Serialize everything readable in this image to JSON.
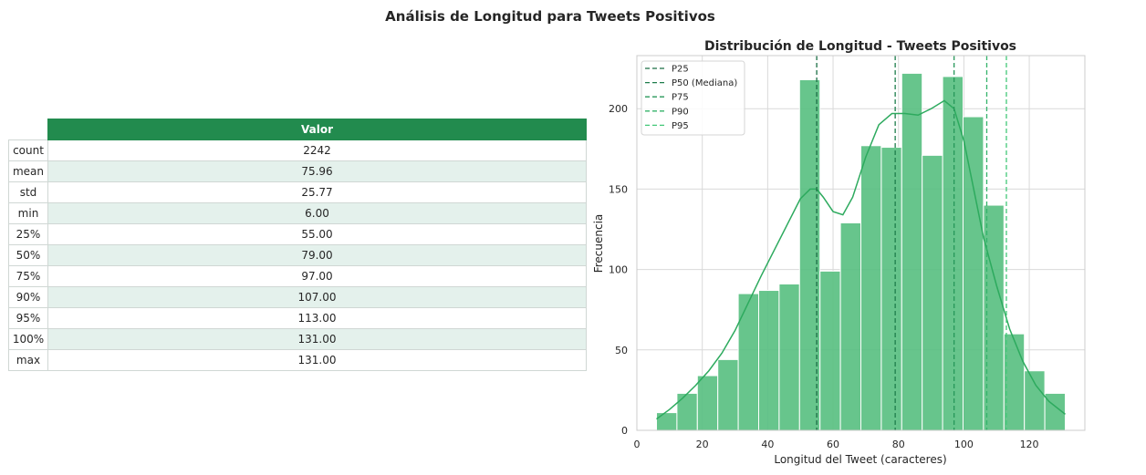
{
  "suptitle": "Análisis de Longitud para Tweets Positivos",
  "table": {
    "header": "Valor",
    "rows": [
      {
        "label": "count",
        "value": "2242"
      },
      {
        "label": "mean",
        "value": "75.96"
      },
      {
        "label": "std",
        "value": "25.77"
      },
      {
        "label": "min",
        "value": "6.00"
      },
      {
        "label": "25%",
        "value": "55.00"
      },
      {
        "label": "50%",
        "value": "79.00"
      },
      {
        "label": "75%",
        "value": "97.00"
      },
      {
        "label": "90%",
        "value": "107.00"
      },
      {
        "label": "95%",
        "value": "113.00"
      },
      {
        "label": "100%",
        "value": "131.00"
      },
      {
        "label": "max",
        "value": "131.00"
      }
    ],
    "colors": {
      "header_bg": "#228b4e",
      "stripe": "#e4f1ec"
    }
  },
  "chart_data": {
    "type": "bar",
    "subtype": "histogram",
    "title": "Distribución de Longitud - Tweets Positivos",
    "xlabel": "Longitud del Tweet (caracteres)",
    "ylabel": "Frecuencia",
    "xlim": [
      0,
      137
    ],
    "ylim": [
      0,
      233
    ],
    "xticks": [
      0,
      20,
      40,
      60,
      80,
      100,
      120
    ],
    "yticks": [
      0,
      50,
      100,
      150,
      200
    ],
    "grid": true,
    "bar_color": "#57bf80",
    "bins": [
      {
        "x0": 6.0,
        "x1": 12.25,
        "count": 11
      },
      {
        "x0": 12.25,
        "x1": 18.5,
        "count": 23
      },
      {
        "x0": 18.5,
        "x1": 24.75,
        "count": 34
      },
      {
        "x0": 24.75,
        "x1": 31.0,
        "count": 44
      },
      {
        "x0": 31.0,
        "x1": 37.25,
        "count": 85
      },
      {
        "x0": 37.25,
        "x1": 43.5,
        "count": 87
      },
      {
        "x0": 43.5,
        "x1": 49.75,
        "count": 91
      },
      {
        "x0": 49.75,
        "x1": 56.0,
        "count": 218
      },
      {
        "x0": 56.0,
        "x1": 62.25,
        "count": 99
      },
      {
        "x0": 62.25,
        "x1": 68.5,
        "count": 129
      },
      {
        "x0": 68.5,
        "x1": 74.75,
        "count": 177
      },
      {
        "x0": 74.75,
        "x1": 81.0,
        "count": 176
      },
      {
        "x0": 81.0,
        "x1": 87.25,
        "count": 222
      },
      {
        "x0": 87.25,
        "x1": 93.5,
        "count": 171
      },
      {
        "x0": 93.5,
        "x1": 99.75,
        "count": 220
      },
      {
        "x0": 99.75,
        "x1": 106.0,
        "count": 195
      },
      {
        "x0": 106.0,
        "x1": 112.25,
        "count": 140
      },
      {
        "x0": 112.25,
        "x1": 118.5,
        "count": 60
      },
      {
        "x0": 118.5,
        "x1": 124.75,
        "count": 37
      },
      {
        "x0": 124.75,
        "x1": 131.0,
        "count": 23
      }
    ],
    "kde": {
      "color": "#2daa5e",
      "x": [
        6,
        10,
        14,
        18,
        22,
        26,
        30,
        34,
        38,
        42,
        46,
        50,
        53,
        55,
        57,
        60,
        63,
        66,
        70,
        74,
        78,
        82,
        86,
        90,
        94,
        97,
        100,
        103,
        106,
        110,
        114,
        118,
        122,
        126,
        131
      ],
      "y": [
        7,
        13,
        20,
        28,
        37,
        48,
        62,
        79,
        96,
        112,
        128,
        144,
        150,
        150,
        145,
        136,
        134,
        145,
        170,
        190,
        197,
        197,
        196,
        200,
        205,
        200,
        180,
        150,
        120,
        90,
        63,
        43,
        28,
        18,
        10
      ]
    },
    "vlines": [
      {
        "name": "P25",
        "x": 55,
        "color": "#1b6e44"
      },
      {
        "name": "P50 (Mediana)",
        "x": 79,
        "color": "#1e7d4b"
      },
      {
        "name": "P75",
        "x": 97,
        "color": "#27975a"
      },
      {
        "name": "P90",
        "x": 107,
        "color": "#34b36a"
      },
      {
        "name": "P95",
        "x": 113,
        "color": "#42c878"
      }
    ],
    "legend_position": "top-left"
  }
}
